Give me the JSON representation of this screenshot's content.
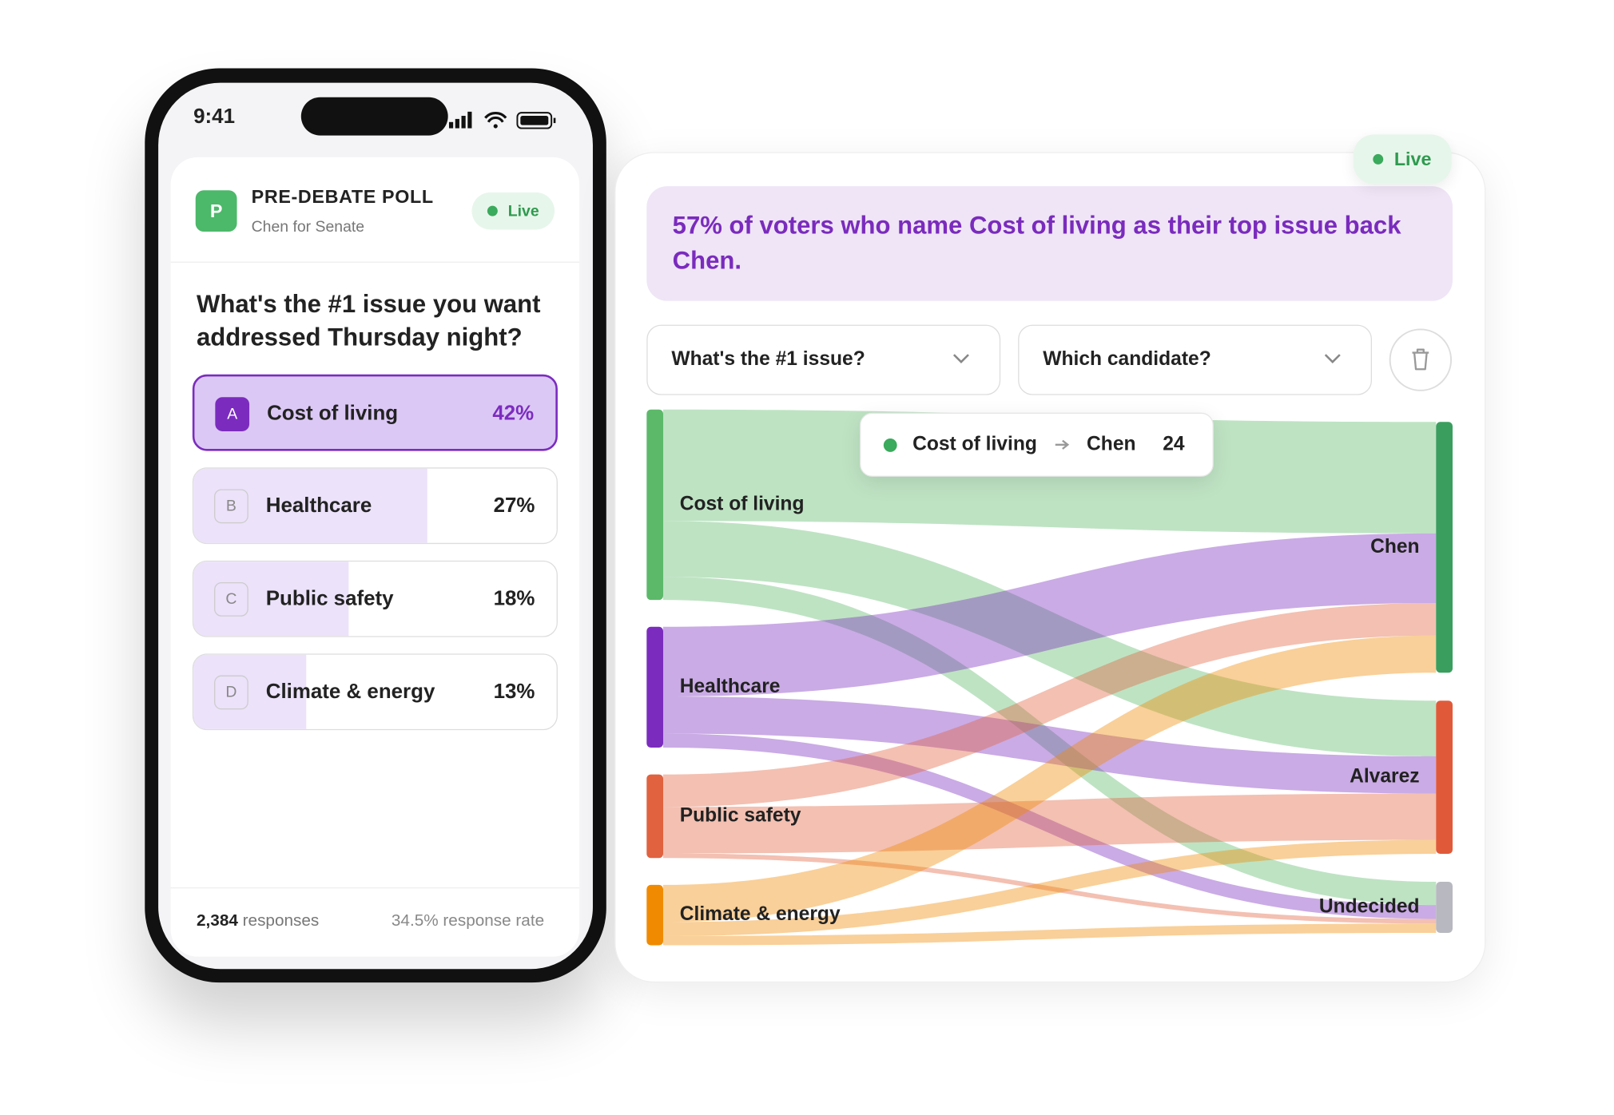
{
  "phone": {
    "status_time": "9:41",
    "poll": {
      "avatar": "P",
      "title": "PRE-DEBATE POLL",
      "subtitle": "Chen for Senate",
      "status": "Live",
      "question": "What's the #1 issue you want addressed Thursday night?",
      "options": [
        {
          "letter": "A",
          "label": "Cost of living",
          "value": 42,
          "value_label": "42%",
          "selected": true
        },
        {
          "letter": "B",
          "label": "Healthcare",
          "value": 27,
          "value_label": "27%",
          "selected": false
        },
        {
          "letter": "C",
          "label": "Public safety",
          "value": 18,
          "value_label": "18%",
          "selected": false
        },
        {
          "letter": "D",
          "label": "Climate & energy",
          "value": 13,
          "value_label": "13%",
          "selected": false
        }
      ],
      "footer": {
        "responses_count": "2,384",
        "responses_text": "responses",
        "rate": "34.5% response rate"
      }
    }
  },
  "dashboard": {
    "status": "Live",
    "insight": "57% of voters who name Cost of living as their top issue back Chen.",
    "filters": [
      "What's the #1 issue?",
      "Which candidate?"
    ]
  },
  "chart_data": {
    "type": "sankey",
    "sources": [
      {
        "name": "Cost of living",
        "color": "#5cb96a"
      },
      {
        "name": "Healthcare",
        "color": "#7b2cbf"
      },
      {
        "name": "Public safety",
        "color": "#e0623f"
      },
      {
        "name": "Climate & energy",
        "color": "#f08a00"
      }
    ],
    "targets": [
      {
        "name": "Chen",
        "color": "#3a9e5f"
      },
      {
        "name": "Alvarez",
        "color": "#e05a3a"
      },
      {
        "name": "Undecided",
        "color": "#b8b8c0"
      }
    ],
    "links": [
      {
        "source": 0,
        "target": 0,
        "value": 24
      },
      {
        "source": 0,
        "target": 1,
        "value": 12
      },
      {
        "source": 0,
        "target": 2,
        "value": 5
      },
      {
        "source": 1,
        "target": 0,
        "value": 15
      },
      {
        "source": 1,
        "target": 1,
        "value": 8
      },
      {
        "source": 1,
        "target": 2,
        "value": 3
      },
      {
        "source": 2,
        "target": 0,
        "value": 7
      },
      {
        "source": 2,
        "target": 1,
        "value": 10
      },
      {
        "source": 2,
        "target": 2,
        "value": 1
      },
      {
        "source": 3,
        "target": 0,
        "value": 8
      },
      {
        "source": 3,
        "target": 1,
        "value": 3
      },
      {
        "source": 3,
        "target": 2,
        "value": 2
      }
    ]
  }
}
